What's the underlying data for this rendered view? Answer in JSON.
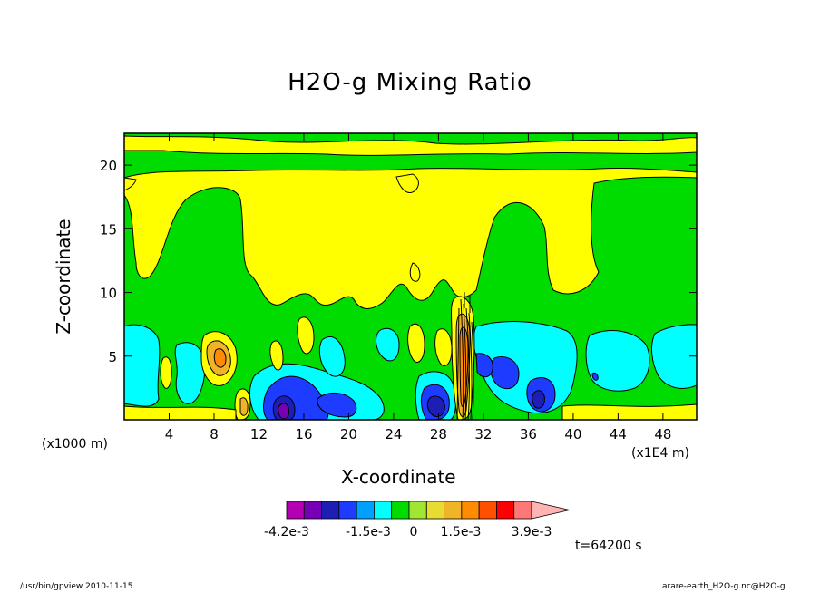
{
  "chart_data": {
    "type": "heatmap",
    "title": "H2O-g Mixing Ratio",
    "xlabel": "X-coordinate",
    "ylabel": "Z-coordinate",
    "x_unit_left": "(x1000 m)",
    "x_unit_right": "(x1E4 m)",
    "x_ticks": [
      "4",
      "8",
      "12",
      "16",
      "20",
      "24",
      "28",
      "32",
      "36",
      "40",
      "44",
      "48"
    ],
    "y_ticks": [
      "5",
      "10",
      "15",
      "20"
    ],
    "xlim": [
      0,
      51
    ],
    "ylim": [
      0,
      22.5
    ],
    "time_label": "t=64200 s",
    "colorbar": {
      "labels": [
        "-4.2e-3",
        "-1.5e-3",
        "0",
        "1.5e-3",
        "3.9e-3"
      ],
      "colors": [
        "#b400b4",
        "#7800b4",
        "#1e1eb4",
        "#1e3cff",
        "#00a0ff",
        "#00ffff",
        "#00dc00",
        "#a0e632",
        "#e6dc32",
        "#f0b428",
        "#ff8c00",
        "#ff5000",
        "#ff0000",
        "#ff7878",
        "#ffb4b4"
      ]
    },
    "regions": [
      {
        "level": "green",
        "color": "#00dc00"
      },
      {
        "level": "yellow",
        "color": "#ffff00"
      },
      {
        "level": "cyan",
        "color": "#00ffff"
      },
      {
        "level": "blue",
        "color": "#1e3cff"
      },
      {
        "level": "dark-blue",
        "color": "#1e1eb4"
      },
      {
        "level": "purple",
        "color": "#7800b4"
      },
      {
        "level": "orange",
        "color": "#f0b428"
      },
      {
        "level": "dark-orange",
        "color": "#ff8c00"
      }
    ]
  },
  "footer": {
    "left": "/usr/bin/gpview   2010-11-15",
    "right": "arare-earth_H2O-g.nc@H2O-g"
  }
}
